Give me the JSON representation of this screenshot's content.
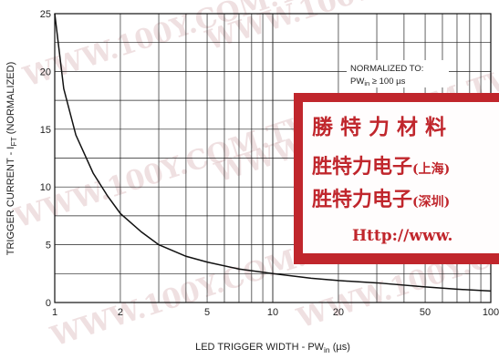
{
  "chart_data": {
    "type": "line",
    "xlabel": "LED TRIGGER WIDTH - PW",
    "xlabel_sub": "in",
    "xlabel_unit": " (µs)",
    "ylabel": "TRIGGER CURRENT - I",
    "ylabel_sub": "FT",
    "ylabel_unit": " (NORMALIZED)",
    "x_scale": "log",
    "xlim": [
      1,
      100
    ],
    "ylim": [
      0,
      25
    ],
    "x_ticks": [
      1,
      2,
      5,
      10,
      20,
      50,
      100
    ],
    "x_tick_labels": [
      "1",
      "2",
      "5",
      "10",
      "20",
      "50",
      "100"
    ],
    "y_ticks": [
      0,
      5,
      10,
      15,
      20,
      25
    ],
    "y_tick_labels": [
      "0",
      "5",
      "10",
      "15",
      "20",
      "25"
    ],
    "grid": true,
    "annotation": {
      "line1": "NORMALIZED TO:",
      "line2_prefix": "PW",
      "line2_sub": "in",
      "line2_suffix": " ≥ 100 µs"
    },
    "series": [
      {
        "x": [
          1,
          1.1,
          1.25,
          1.5,
          1.75,
          2,
          2.5,
          3,
          4,
          5,
          7,
          10,
          15,
          20,
          30,
          50,
          70,
          100
        ],
        "y": [
          25,
          18.5,
          14.5,
          11.2,
          9.2,
          7.7,
          6.1,
          5.0,
          4.0,
          3.5,
          2.9,
          2.5,
          2.1,
          1.9,
          1.7,
          1.35,
          1.15,
          1.0
        ]
      }
    ]
  },
  "stamp": {
    "line1": "勝 特 力 材 料",
    "line2_main": "胜特力电子",
    "line2_paren": "(上海)",
    "line3_main": "胜特力电子",
    "line3_paren": "(深圳)",
    "line4": "Http://www."
  },
  "watermark": {
    "text": "WWW.100Y.COM.TW"
  },
  "colors": {
    "stamp_red": "#c0262c",
    "curve": "#111111",
    "grid": "#222222"
  }
}
